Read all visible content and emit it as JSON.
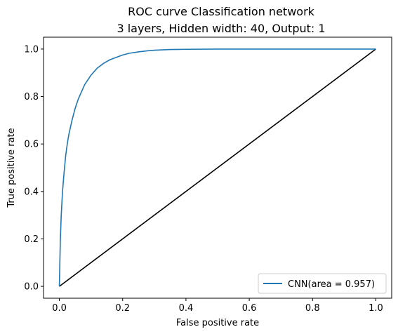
{
  "chart_data": {
    "type": "line",
    "title": "ROC curve Classification network",
    "subtitle": "3 layers, Hidden width: 40, Output: 1",
    "xlabel": "False positive rate",
    "ylabel": "True positive rate",
    "xlim": [
      -0.05,
      1.05
    ],
    "ylim": [
      -0.05,
      1.05
    ],
    "x_ticks": [
      "0.0",
      "0.2",
      "0.4",
      "0.6",
      "0.8",
      "1.0"
    ],
    "y_ticks": [
      "0.0",
      "0.2",
      "0.4",
      "0.6",
      "0.8",
      "1.0"
    ],
    "grid": false,
    "legend_position": "lower-right",
    "series": [
      {
        "name": "CNN(area = 0.957)",
        "color": "#1f77b4",
        "x": [
          0.0,
          0.003,
          0.006,
          0.01,
          0.015,
          0.02,
          0.025,
          0.03,
          0.04,
          0.05,
          0.06,
          0.07,
          0.08,
          0.1,
          0.12,
          0.14,
          0.16,
          0.18,
          0.2,
          0.22,
          0.25,
          0.28,
          0.3,
          0.35,
          0.4,
          0.5,
          0.6,
          0.7,
          0.8,
          0.9,
          1.0
        ],
        "y": [
          0.0,
          0.19,
          0.3,
          0.4,
          0.48,
          0.55,
          0.6,
          0.64,
          0.7,
          0.75,
          0.79,
          0.82,
          0.85,
          0.89,
          0.92,
          0.94,
          0.955,
          0.965,
          0.975,
          0.982,
          0.988,
          0.993,
          0.995,
          0.998,
          0.999,
          1.0,
          1.0,
          1.0,
          1.0,
          1.0,
          1.0
        ]
      },
      {
        "name": "",
        "color": "#000000",
        "x": [
          0.0,
          1.0
        ],
        "y": [
          0.0,
          1.0
        ]
      }
    ]
  }
}
